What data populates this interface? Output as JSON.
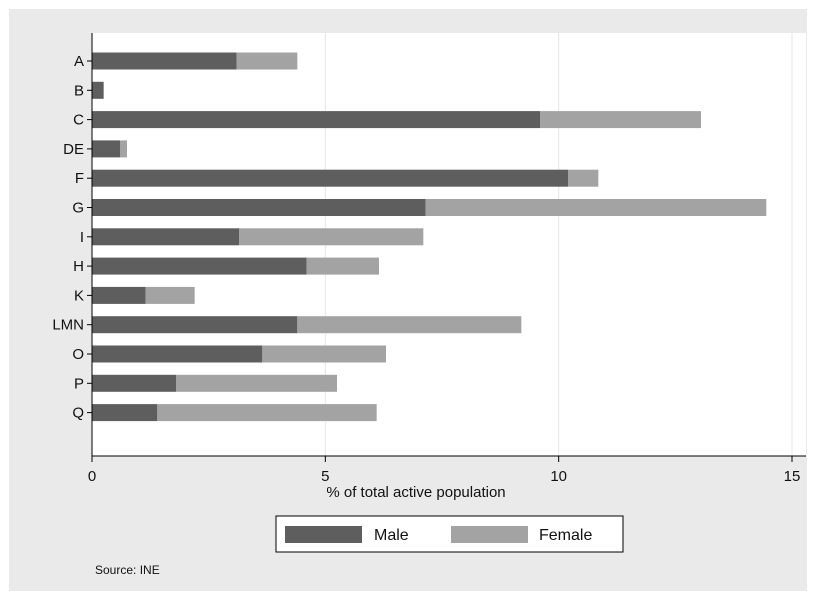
{
  "chart_data": {
    "type": "bar",
    "orientation": "horizontal",
    "stacked": true,
    "categories": [
      "A",
      "B",
      "C",
      "DE",
      "F",
      "G",
      "I",
      "H",
      "K",
      "LMN",
      "O",
      "P",
      "Q"
    ],
    "series": [
      {
        "name": "Male",
        "color": "#5e5e5e",
        "values": [
          3.1,
          0.25,
          9.6,
          0.6,
          10.2,
          7.15,
          3.15,
          4.6,
          1.15,
          4.4,
          3.65,
          1.8,
          1.4
        ]
      },
      {
        "name": "Female",
        "color": "#a3a3a3",
        "values": [
          1.3,
          0.0,
          3.45,
          0.15,
          0.65,
          7.3,
          3.95,
          1.55,
          1.05,
          4.8,
          2.65,
          3.45,
          4.7
        ]
      }
    ],
    "xlabel": "% of total active population",
    "ylabel": "",
    "xlim": [
      0,
      15.3
    ],
    "xticks": [
      "0",
      "5",
      "10",
      "15"
    ],
    "grid": "vertical",
    "legend": {
      "position": "bottom",
      "entries": [
        "Male",
        "Female"
      ]
    },
    "source": "Source: INE",
    "background": "#eaeaea",
    "plot_background": "#ffffff"
  }
}
